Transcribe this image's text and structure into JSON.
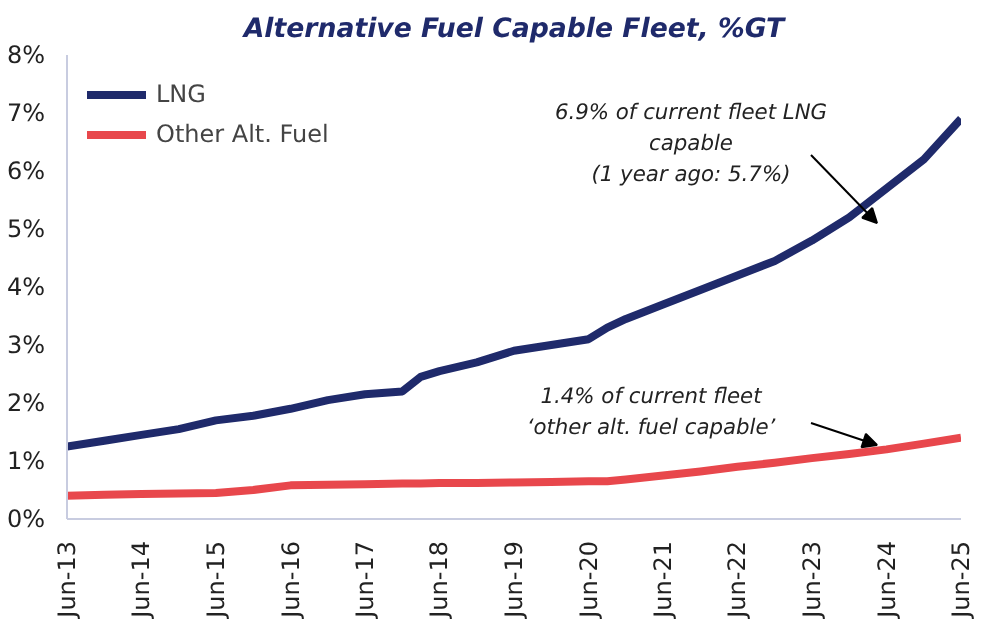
{
  "chart_data": {
    "type": "line",
    "title": "Alternative Fuel Capable Fleet, %GT",
    "x": [
      "2013-06",
      "2013-12",
      "2014-06",
      "2014-12",
      "2015-06",
      "2015-12",
      "2016-06",
      "2016-12",
      "2017-06",
      "2017-12",
      "2018-03",
      "2018-06",
      "2018-12",
      "2019-06",
      "2019-12",
      "2020-06",
      "2020-09",
      "2020-12",
      "2021-06",
      "2021-12",
      "2022-06",
      "2022-12",
      "2023-06",
      "2023-12",
      "2024-06",
      "2024-12",
      "2025-06"
    ],
    "series": [
      {
        "name": "LNG",
        "color": "#1f2a6b",
        "values": [
          1.25,
          1.35,
          1.45,
          1.55,
          1.7,
          1.78,
          1.9,
          2.05,
          2.15,
          2.2,
          2.45,
          2.55,
          2.7,
          2.9,
          3.0,
          3.1,
          3.3,
          3.45,
          3.7,
          3.95,
          4.2,
          4.45,
          4.8,
          5.2,
          5.7,
          6.2,
          6.9
        ]
      },
      {
        "name": "Other Alt. Fuel",
        "color": "#e8474c",
        "values": [
          0.4,
          0.42,
          0.43,
          0.44,
          0.45,
          0.5,
          0.58,
          0.59,
          0.6,
          0.61,
          0.61,
          0.62,
          0.62,
          0.63,
          0.64,
          0.65,
          0.65,
          0.68,
          0.75,
          0.82,
          0.9,
          0.97,
          1.05,
          1.12,
          1.2,
          1.3,
          1.4
        ]
      }
    ],
    "xlim": [
      "2013-06",
      "2025-06"
    ],
    "xticks": [
      {
        "value": "2013-06",
        "label": "Jun-13"
      },
      {
        "value": "2014-06",
        "label": "Jun-14"
      },
      {
        "value": "2015-06",
        "label": "Jun-15"
      },
      {
        "value": "2016-06",
        "label": "Jun-16"
      },
      {
        "value": "2017-06",
        "label": "Jun-17"
      },
      {
        "value": "2018-06",
        "label": "Jun-18"
      },
      {
        "value": "2019-06",
        "label": "Jun-19"
      },
      {
        "value": "2020-06",
        "label": "Jun-20"
      },
      {
        "value": "2021-06",
        "label": "Jun-21"
      },
      {
        "value": "2022-06",
        "label": "Jun-22"
      },
      {
        "value": "2023-06",
        "label": "Jun-23"
      },
      {
        "value": "2024-06",
        "label": "Jun-24"
      },
      {
        "value": "2025-06",
        "label": "Jun-25"
      }
    ],
    "ylim": [
      0,
      8
    ],
    "yticks": [
      {
        "value": 0,
        "label": "0%"
      },
      {
        "value": 1,
        "label": "1%"
      },
      {
        "value": 2,
        "label": "2%"
      },
      {
        "value": 3,
        "label": "3%"
      },
      {
        "value": 4,
        "label": "4%"
      },
      {
        "value": 5,
        "label": "5%"
      },
      {
        "value": 6,
        "label": "6%"
      },
      {
        "value": 7,
        "label": "7%"
      },
      {
        "value": 8,
        "label": "8%"
      }
    ],
    "annotations": [
      "6.9% of current fleet LNG\ncapable\n(1 year ago: 5.7%)",
      "1.4% of current fleet\n‘other alt. fuel capable’"
    ],
    "grid": false,
    "legend": "top left",
    "line_style": "solid",
    "marker": "none"
  }
}
